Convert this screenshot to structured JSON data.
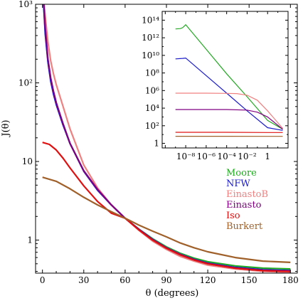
{
  "chart_data": [
    {
      "type": "line",
      "xlabel": "θ (degrees)",
      "ylabel": "J(θ)",
      "xlim": [
        -5,
        185
      ],
      "ylim": [
        0.38,
        1000
      ],
      "yscale": "log",
      "xticks": [
        0,
        30,
        60,
        90,
        120,
        150,
        180
      ],
      "xtick_labels": [
        "0",
        "30",
        "60",
        "90",
        "120",
        "150",
        "180"
      ],
      "yticks": [
        1,
        10,
        100,
        1000
      ],
      "ytick_labels": [
        "1",
        "10",
        "10²",
        "10³"
      ],
      "legend_placement": "right",
      "series": [
        {
          "name": "Moore",
          "color": "#22aa22",
          "x": [
            0,
            1,
            2,
            4,
            6,
            8,
            10,
            15,
            20,
            30,
            40,
            50,
            60,
            70,
            80,
            90,
            100,
            110,
            120,
            140,
            160,
            180
          ],
          "y": [
            2000,
            900,
            450,
            190,
            110,
            75,
            55,
            30,
            17,
            7.6,
            4.4,
            2.8,
            1.9,
            1.38,
            1.04,
            0.82,
            0.68,
            0.59,
            0.53,
            0.47,
            0.44,
            0.43
          ]
        },
        {
          "name": "NFW",
          "color": "#1a1acc",
          "x": [
            0,
            1,
            2,
            4,
            6,
            8,
            10,
            15,
            20,
            30,
            40,
            50,
            60,
            70,
            80,
            90,
            100,
            110,
            120,
            140,
            160,
            180
          ],
          "y": [
            2000,
            900,
            420,
            185,
            105,
            72,
            53,
            29,
            17,
            7.5,
            4.3,
            2.8,
            1.9,
            1.37,
            1.02,
            0.8,
            0.66,
            0.57,
            0.51,
            0.45,
            0.42,
            0.41
          ]
        },
        {
          "name": "EinastoB",
          "color": "#f08080",
          "x": [
            0,
            1,
            2,
            4,
            6,
            8,
            10,
            15,
            20,
            30,
            40,
            50,
            60,
            70,
            80,
            90,
            100,
            110,
            120,
            140,
            160,
            180
          ],
          "y": [
            2000,
            1100,
            700,
            330,
            190,
            130,
            95,
            50,
            26,
            9.0,
            4.6,
            2.8,
            1.9,
            1.33,
            0.97,
            0.76,
            0.62,
            0.54,
            0.48,
            0.43,
            0.4,
            0.39
          ]
        },
        {
          "name": "Einasto",
          "color": "#800080",
          "x": [
            0,
            1,
            2,
            4,
            6,
            8,
            10,
            15,
            20,
            30,
            40,
            50,
            60,
            70,
            80,
            90,
            100,
            110,
            120,
            140,
            160,
            180
          ],
          "y": [
            2000,
            1000,
            500,
            200,
            115,
            78,
            56,
            30,
            17,
            7.6,
            4.4,
            2.8,
            1.9,
            1.36,
            1.01,
            0.79,
            0.65,
            0.56,
            0.5,
            0.44,
            0.41,
            0.4
          ]
        },
        {
          "name": "Iso",
          "color": "#e01010",
          "x": [
            0,
            5,
            10,
            15,
            20,
            30,
            40,
            50,
            60,
            70,
            80,
            90,
            100,
            110,
            120,
            140,
            160,
            180
          ],
          "y": [
            17.5,
            16.5,
            14.0,
            11.0,
            8.3,
            4.9,
            3.1,
            2.2,
            1.9,
            1.35,
            1.0,
            0.79,
            0.65,
            0.56,
            0.5,
            0.44,
            0.41,
            0.4
          ]
        },
        {
          "name": "Burkert",
          "color": "#a0602a",
          "x": [
            0,
            10,
            20,
            30,
            40,
            50,
            60,
            70,
            80,
            90,
            100,
            110,
            120,
            140,
            160,
            180
          ],
          "y": [
            6.3,
            5.6,
            4.5,
            3.5,
            2.8,
            2.3,
            1.9,
            1.55,
            1.3,
            1.1,
            0.92,
            0.8,
            0.71,
            0.6,
            0.54,
            0.52
          ]
        }
      ]
    },
    {
      "type": "line",
      "xscale": "log",
      "yscale": "log",
      "xlim": [
        5e-11,
        100
      ],
      "ylim": [
        0.3,
        1000000000000000.0
      ],
      "xticks": [
        1e-08,
        1e-06,
        0.0001,
        0.01,
        1
      ],
      "xtick_labels": [
        "10⁻⁸",
        "10⁻⁶",
        "10⁻⁴",
        "10⁻²",
        "1"
      ],
      "yticks": [
        1,
        100.0,
        10000.0,
        1000000.0,
        100000000.0,
        10000000000.0,
        1000000000000.0,
        100000000000000.0
      ],
      "ytick_labels": [
        "1",
        "10²",
        "10⁴",
        "10⁶",
        "10⁸",
        "10¹⁰",
        "10¹²",
        "10¹⁴"
      ],
      "series": [
        {
          "name": "Moore",
          "color": "#22aa22",
          "x": [
            1e-09,
            3e-09,
            5e-09,
            1e-08,
            1e-06,
            0.0001,
            0.01,
            1,
            30
          ],
          "y": [
            10000000000000.0,
            11000000000000.0,
            14000000000000.0,
            30000000000000.0,
            50000000000.0,
            80000000.0,
            200000.0,
            400,
            40
          ]
        },
        {
          "name": "NFW",
          "color": "#1a1acc",
          "x": [
            1e-09,
            5e-09,
            1e-08,
            1e-06,
            0.0001,
            0.01,
            1,
            30
          ],
          "y": [
            4000000000.0,
            4500000000.0,
            5000000000.0,
            50000000.0,
            500000.0,
            5000.0,
            60,
            30
          ]
        },
        {
          "name": "EinastoB",
          "color": "#f08080",
          "x": [
            1e-09,
            1e-06,
            0.0001,
            0.001,
            0.01,
            0.1,
            1,
            30
          ],
          "y": [
            500000.0,
            500000.0,
            480000.0,
            450000.0,
            300000.0,
            80000.0,
            5000.0,
            50
          ]
        },
        {
          "name": "Einasto",
          "color": "#800080",
          "x": [
            1e-09,
            1e-06,
            0.0001,
            0.01,
            0.1,
            1,
            30
          ],
          "y": [
            7000,
            7000,
            7000,
            6000,
            3500,
            1000,
            40
          ]
        },
        {
          "name": "Iso",
          "color": "#e01010",
          "x": [
            1e-09,
            0.0001,
            1,
            30
          ],
          "y": [
            18,
            18,
            17,
            17
          ]
        },
        {
          "name": "Burkert",
          "color": "#a0602a",
          "x": [
            1e-09,
            0.0001,
            1,
            30
          ],
          "y": [
            6.3,
            6.3,
            6.2,
            6.2
          ]
        }
      ]
    }
  ]
}
